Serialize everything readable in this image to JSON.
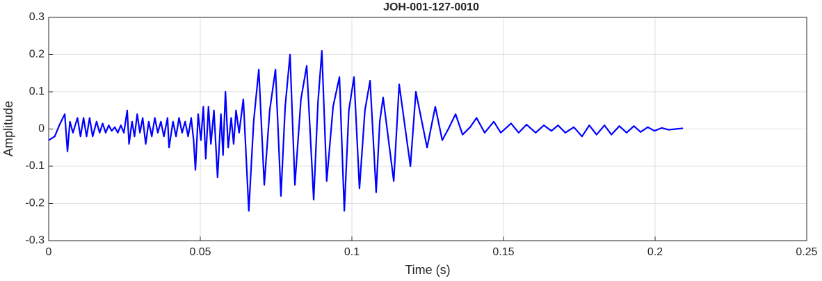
{
  "chart_data": {
    "type": "line",
    "title": "JOH-001-127-0010",
    "x_label": "Time (s)",
    "y_label": "Amplitude",
    "xlim": [
      0,
      0.25
    ],
    "ylim": [
      -0.3,
      0.3
    ],
    "xticks": [
      0,
      0.05,
      0.1,
      0.15,
      0.2,
      0.25
    ],
    "yticks": [
      -0.3,
      -0.2,
      -0.1,
      0,
      0.1,
      0.2,
      0.3
    ],
    "grid": true,
    "series": [
      {
        "name": "JOH-001-127-0010",
        "color": "#0000ff",
        "x": [
          0,
          0.002,
          0.0035,
          0.0053,
          0.0062,
          0.007,
          0.008,
          0.0095,
          0.0105,
          0.0115,
          0.0125,
          0.0135,
          0.0145,
          0.0158,
          0.0168,
          0.0178,
          0.0188,
          0.0198,
          0.0208,
          0.0218,
          0.0228,
          0.0238,
          0.0248,
          0.0259,
          0.0265,
          0.0275,
          0.0283,
          0.0292,
          0.0301,
          0.031,
          0.032,
          0.033,
          0.034,
          0.035,
          0.036,
          0.037,
          0.038,
          0.0392,
          0.0397,
          0.041,
          0.042,
          0.043,
          0.044,
          0.045,
          0.046,
          0.047,
          0.0478,
          0.0484,
          0.0493,
          0.0502,
          0.051,
          0.0518,
          0.0527,
          0.0535,
          0.0545,
          0.0557,
          0.0568,
          0.0575,
          0.0583,
          0.0592,
          0.0602,
          0.061,
          0.0618,
          0.0628,
          0.0642,
          0.066,
          0.0676,
          0.0693,
          0.0711,
          0.0729,
          0.0748,
          0.0766,
          0.078,
          0.0796,
          0.0812,
          0.0832,
          0.0851,
          0.0874,
          0.0888,
          0.0901,
          0.0917,
          0.0938,
          0.0959,
          0.0975,
          0.099,
          0.1007,
          0.1025,
          0.1043,
          0.106,
          0.108,
          0.1092,
          0.1103,
          0.1138,
          0.1156,
          0.1193,
          0.1211,
          0.1248,
          0.1275,
          0.1298,
          0.1318,
          0.1342,
          0.1365,
          0.139,
          0.1411,
          0.1438,
          0.1468,
          0.1491,
          0.1525,
          0.155,
          0.1576,
          0.1606,
          0.1633,
          0.1658,
          0.168,
          0.1704,
          0.1732,
          0.1759,
          0.1783,
          0.1807,
          0.1833,
          0.1856,
          0.1882,
          0.1906,
          0.193,
          0.1952,
          0.1976,
          0.1998,
          0.2022,
          0.2045,
          0.2068,
          0.2092
        ],
        "values": [
          -0.03,
          -0.02,
          0.01,
          0.04,
          -0.06,
          0.02,
          -0.01,
          0.03,
          -0.02,
          0.03,
          -0.02,
          0.03,
          -0.02,
          0.02,
          -0.01,
          0.015,
          -0.01,
          0.01,
          -0.005,
          0.005,
          -0.01,
          0.01,
          -0.01,
          0.05,
          -0.04,
          0.02,
          -0.02,
          0.04,
          -0.01,
          0.03,
          -0.04,
          0.02,
          -0.02,
          0.03,
          -0.01,
          0.02,
          -0.02,
          0.03,
          -0.05,
          0.02,
          -0.02,
          0.03,
          -0.01,
          0.02,
          -0.02,
          0.03,
          -0.03,
          -0.11,
          0.04,
          -0.03,
          0.06,
          -0.08,
          0.06,
          -0.04,
          0.05,
          -0.13,
          0.04,
          -0.07,
          0.1,
          -0.05,
          0.03,
          -0.04,
          0.05,
          -0.01,
          0.08,
          -0.22,
          0.02,
          0.16,
          -0.15,
          0.05,
          0.16,
          -0.18,
          0.06,
          0.2,
          -0.15,
          0.08,
          0.17,
          -0.19,
          0.07,
          0.21,
          -0.14,
          0.06,
          0.14,
          -0.22,
          0.05,
          0.14,
          -0.16,
          0.05,
          0.13,
          -0.17,
          0.02,
          0.085,
          -0.14,
          0.12,
          -0.1,
          0.1,
          -0.05,
          0.06,
          -0.03,
          0.0,
          0.04,
          -0.015,
          0.005,
          0.03,
          -0.01,
          0.02,
          -0.01,
          0.015,
          -0.01,
          0.012,
          -0.01,
          0.01,
          -0.005,
          0.01,
          -0.01,
          0.005,
          -0.02,
          0.01,
          -0.015,
          0.01,
          -0.015,
          0.008,
          -0.01,
          0.008,
          -0.008,
          0.005,
          -0.005,
          0.003,
          -0.002,
          0.0,
          0.002
        ]
      }
    ]
  }
}
